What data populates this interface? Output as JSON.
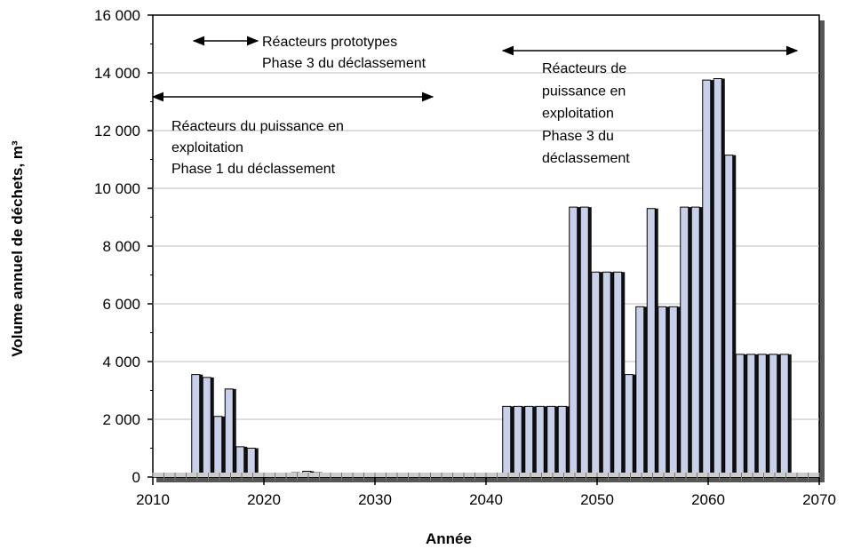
{
  "chart_data": {
    "type": "bar",
    "x_label": "Année",
    "y_label": "Volume annuel de déchets, m³",
    "x": [
      2011,
      2012,
      2013,
      2014,
      2015,
      2016,
      2017,
      2018,
      2019,
      2023,
      2024,
      2025,
      2026,
      2029,
      2030,
      2031,
      2032,
      2042,
      2043,
      2044,
      2045,
      2046,
      2047,
      2048,
      2049,
      2050,
      2051,
      2052,
      2053,
      2054,
      2055,
      2056,
      2057,
      2058,
      2059,
      2060,
      2061,
      2062,
      2063,
      2064,
      2065,
      2066,
      2067
    ],
    "values": [
      100,
      50,
      100,
      3550,
      3450,
      2100,
      3050,
      1050,
      1000,
      150,
      200,
      150,
      50,
      50,
      50,
      50,
      50,
      2450,
      2450,
      2450,
      2450,
      2450,
      2450,
      9350,
      9350,
      7100,
      7100,
      7100,
      3550,
      5900,
      9300,
      5900,
      5900,
      9350,
      9350,
      13750,
      13800,
      11150,
      4250,
      4250,
      4250,
      4250,
      4250
    ],
    "color": "#c9d0ea",
    "xlim": [
      2010,
      2070
    ],
    "xticks": [
      2010,
      2020,
      2030,
      2040,
      2050,
      2060,
      2070
    ],
    "ylim": [
      0,
      16000
    ],
    "yticks": [
      0,
      {
        "value": 2000,
        "label": "2 000"
      },
      {
        "value": 4000,
        "label": "4 000"
      },
      {
        "value": 6000,
        "label": "6 000"
      },
      {
        "value": 8000,
        "label": "8 000"
      },
      {
        "value": 10000,
        "label": "10 000"
      },
      {
        "value": 12000,
        "label": "12 000"
      },
      {
        "value": 14000,
        "label": "14 000"
      },
      {
        "value": 16000,
        "label": "16 000"
      }
    ],
    "grid": true,
    "annotations": [
      {
        "lines": [
          "Réacteurs prototypes",
          "Phase 3 du déclassement"
        ]
      },
      {
        "lines": [
          "Réacteurs du puissance en",
          "exploitation",
          "Phase 1 du déclassement"
        ]
      },
      {
        "lines": [
          "Réacteurs de",
          "puissance en",
          "exploitation",
          "Phase 3 du",
          "déclassement"
        ]
      }
    ]
  }
}
